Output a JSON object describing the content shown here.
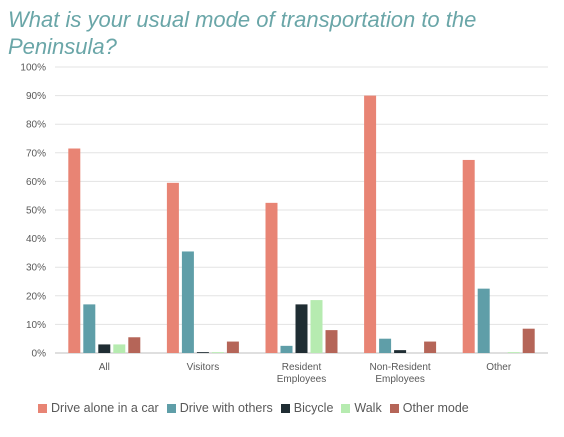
{
  "title": "What is your usual mode of transportation to the Peninsula?",
  "chart_data": {
    "type": "bar",
    "categories": [
      [
        "All"
      ],
      [
        "Visitors"
      ],
      [
        "Resident",
        "Employees"
      ],
      [
        "Non-Resident",
        "Employees"
      ],
      [
        "Other"
      ]
    ],
    "category_labels": [
      "All",
      "Visitors",
      "Resident Employees",
      "Non-Resident Employees",
      "Other"
    ],
    "ylim": [
      0,
      100
    ],
    "y_ticks": [
      0,
      10,
      20,
      30,
      40,
      50,
      60,
      70,
      80,
      90,
      100
    ],
    "y_tick_labels": [
      "0%",
      "10%",
      "20%",
      "30%",
      "40%",
      "50%",
      "60%",
      "70%",
      "80%",
      "90%",
      "100%"
    ],
    "grid": true,
    "legend_position": "bottom",
    "series": [
      {
        "name": "Drive alone in a car",
        "color": "#e88474",
        "values": [
          71.5,
          59.5,
          52.5,
          90.0,
          67.5
        ]
      },
      {
        "name": "Drive with others",
        "color": "#5f9ea8",
        "values": [
          17.0,
          35.5,
          2.5,
          5.0,
          22.5
        ]
      },
      {
        "name": "Bicycle",
        "color": "#1f2d33",
        "values": [
          3.0,
          0.3,
          17.0,
          1.0,
          0.0
        ]
      },
      {
        "name": "Walk",
        "color": "#b6ebb0",
        "values": [
          3.0,
          0.3,
          18.5,
          0.0,
          0.3
        ]
      },
      {
        "name": "Other mode",
        "color": "#b56558",
        "values": [
          5.5,
          4.0,
          8.0,
          4.0,
          8.5
        ]
      }
    ]
  }
}
